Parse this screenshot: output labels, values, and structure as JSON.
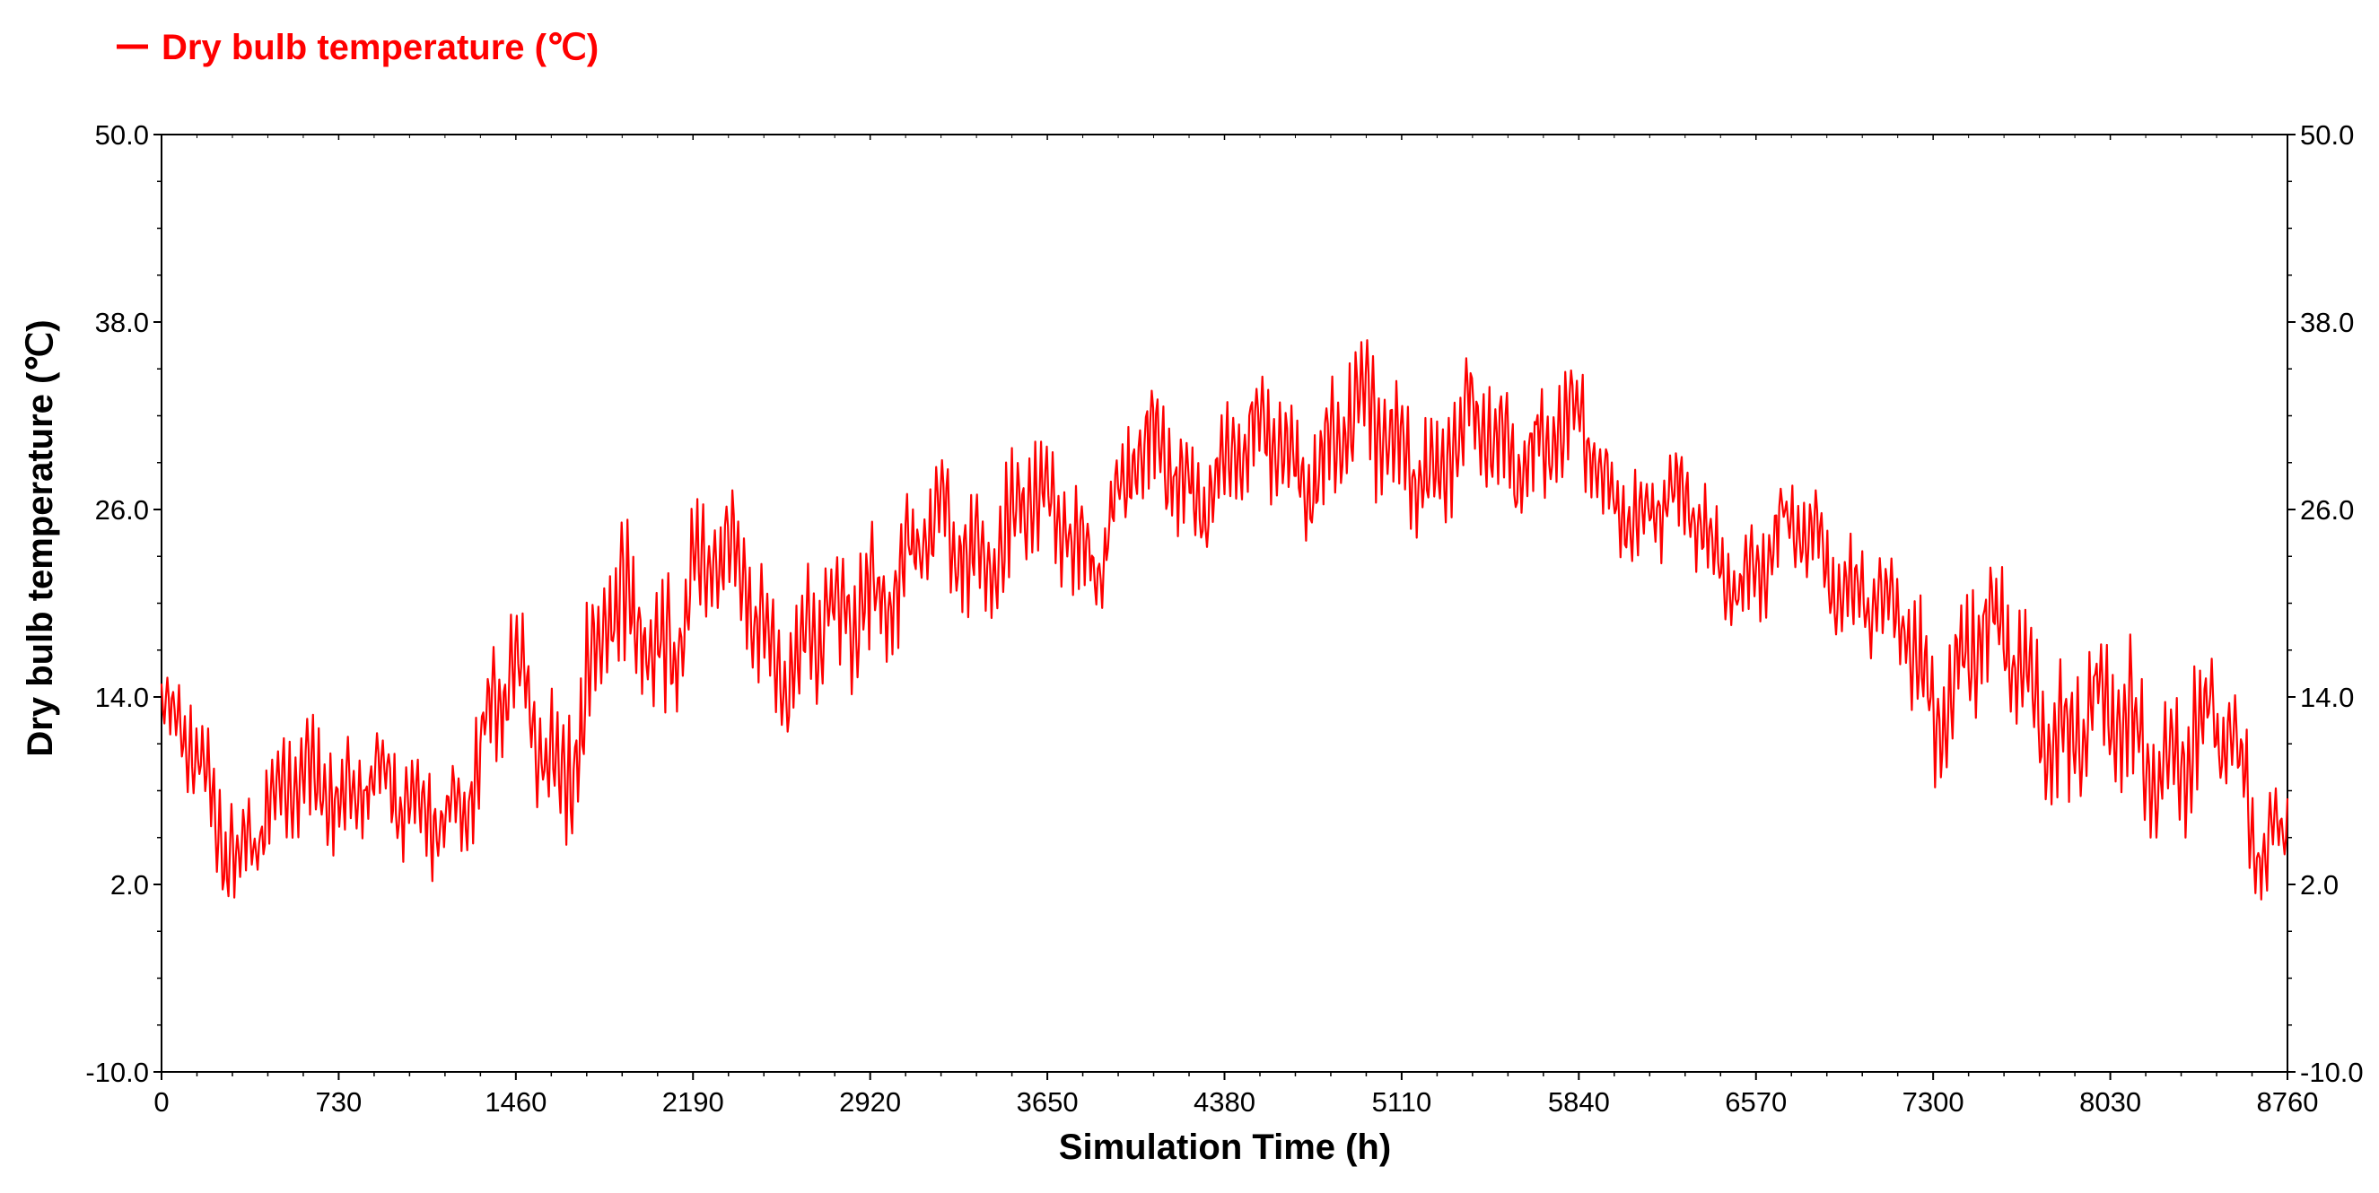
{
  "chart_data": {
    "type": "line",
    "title": "",
    "xlabel": "Simulation Time (h)",
    "ylabel": "Dry  bulb  temperature  (℃)",
    "xlim": [
      0,
      8760
    ],
    "ylim": [
      -10.0,
      50.0
    ],
    "x_ticks": [
      "0",
      "730",
      "1460",
      "2190",
      "2920",
      "3650",
      "4380",
      "5110",
      "5840",
      "6570",
      "7300",
      "8030",
      "8760"
    ],
    "y_ticks": [
      "-10.0",
      "2.0",
      "14.0",
      "26.0",
      "38.0",
      "50.0"
    ],
    "y_ticks_right": [
      "-10.0",
      "2.0",
      "14.0",
      "26.0",
      "38.0",
      "50.0"
    ],
    "grid": false,
    "legend_position": "top-left",
    "series": [
      {
        "name": "Dry bulb temperature (℃)",
        "color": "#ff0000",
        "envelope": {
          "x": [
            0,
            150,
            280,
            450,
            730,
            900,
            1000,
            1200,
            1460,
            1650,
            1850,
            2050,
            2190,
            2400,
            2600,
            2800,
            2920,
            3200,
            3500,
            3650,
            3850,
            4000,
            4200,
            4380,
            4600,
            4800,
            5000,
            5110,
            5250,
            5400,
            5600,
            5840,
            6000,
            6200,
            6400,
            6570,
            6800,
            7000,
            7300,
            7450,
            7600,
            7800,
            8030,
            8200,
            8400,
            8550,
            8650,
            8760
          ],
          "high": [
            16,
            14,
            10,
            11,
            14,
            13,
            10,
            13,
            20,
            17,
            25,
            26,
            28,
            27,
            23,
            24,
            28,
            29,
            32,
            30,
            29,
            34,
            33,
            34,
            35,
            36,
            37,
            37,
            34,
            36,
            37,
            35,
            32,
            30,
            28,
            27,
            29,
            25,
            20,
            25,
            22,
            20,
            18,
            18,
            17,
            16,
            10,
            10
          ],
          "low": [
            11,
            3,
            0,
            2,
            4,
            5,
            1,
            3,
            8,
            4,
            10,
            12,
            14,
            16,
            10,
            11,
            16,
            17,
            19,
            20,
            19,
            23,
            23,
            24,
            24,
            24,
            24,
            25,
            23,
            24,
            25,
            25,
            23,
            22,
            19,
            18,
            19,
            17,
            8,
            12,
            9,
            7,
            5,
            5,
            5,
            3,
            1,
            3
          ]
        }
      }
    ]
  }
}
